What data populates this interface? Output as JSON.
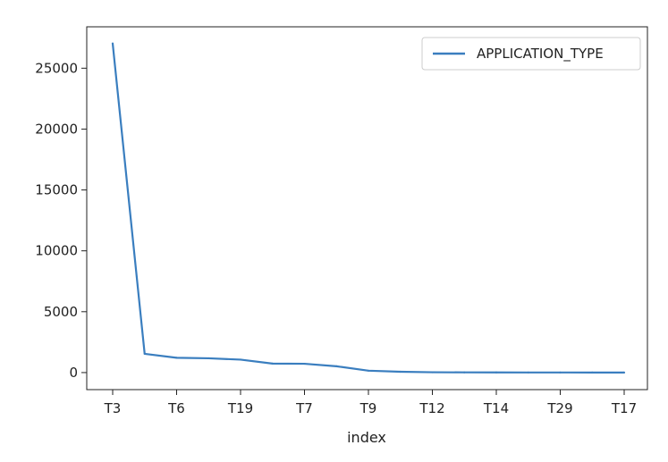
{
  "chart_data": {
    "type": "line",
    "categories": [
      "T3",
      "",
      "T6",
      "",
      "T19",
      "",
      "T7",
      "",
      "T9",
      "",
      "T12",
      "",
      "T14",
      "",
      "T29",
      "",
      "T17"
    ],
    "series": [
      {
        "name": "APPLICATION_TYPE",
        "values": [
          27037,
          1542,
          1216,
          1173,
          1065,
          737,
          725,
          516,
          156,
          66,
          27,
          16,
          12,
          10,
          8,
          6,
          5
        ]
      }
    ],
    "xticks": [
      "T3",
      "T6",
      "T19",
      "T7",
      "T9",
      "T12",
      "T14",
      "T29",
      "T17"
    ],
    "yticks": [
      0,
      5000,
      10000,
      15000,
      20000,
      25000
    ],
    "xlabel": "index",
    "ylabel": "",
    "ylim": [
      -1400,
      28400
    ],
    "grid": false,
    "legend": "top-right",
    "colors": {
      "series": "#3a7ebf",
      "axes": "#222222",
      "legend_border": "#cccccc"
    }
  }
}
